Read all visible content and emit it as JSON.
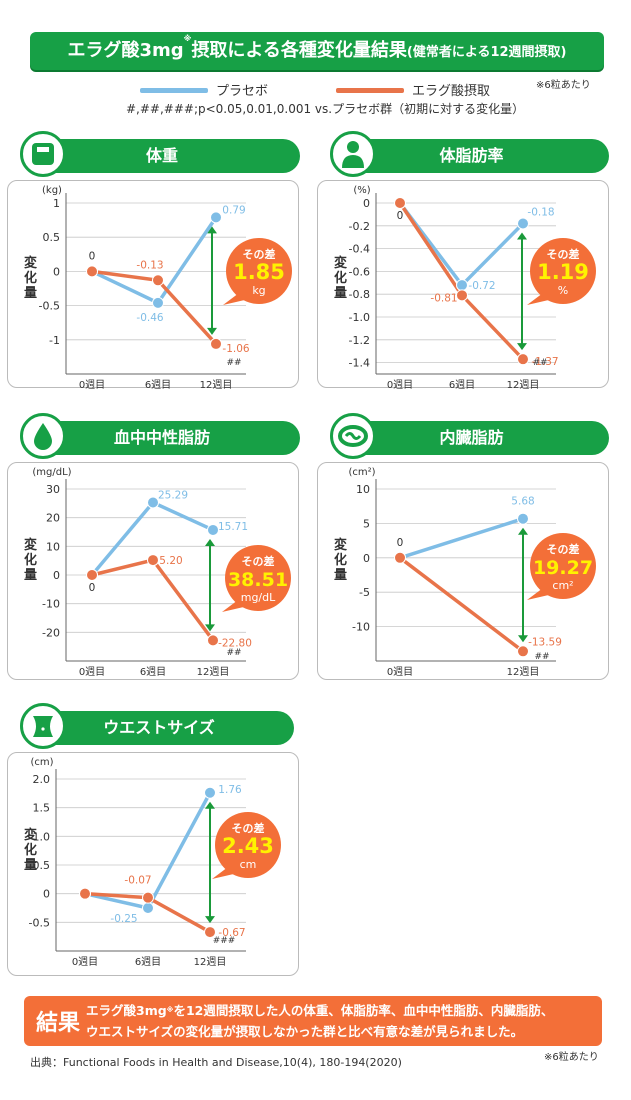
{
  "header": {
    "title_main": "エラグ酸3mg",
    "title_sup": "※",
    "title_rest": "摂取による各種変化量結果",
    "title_paren": "(健常者による12週間摂取)",
    "per_pill": "※6粒あたり",
    "significance": "#,##,###;p<0.05,0.01,0.001 vs.プラセボ群（初期に対する変化量）"
  },
  "legend": {
    "placebo": "プラセボ",
    "ellagic": "エラグ酸摂取"
  },
  "colors": {
    "green": "#17a046",
    "placebo": "#7fbde6",
    "ellagic": "#e8744a",
    "badge": "#f36f38",
    "badge_value": "#fff200",
    "arrow": "#1a9a3a"
  },
  "y_axis_label": "変化量",
  "chart_data": [
    {
      "type": "line",
      "title": "体重",
      "icon": "scale-icon",
      "unit": "(kg)",
      "x": [
        "0週目",
        "6週目",
        "12週目"
      ],
      "ylim": [
        -1.5,
        1
      ],
      "yticks": [
        "1",
        "0.5",
        "0",
        "-0.5",
        "-1"
      ],
      "series": [
        {
          "name": "プラセボ",
          "values": [
            0,
            -0.46,
            0.79
          ],
          "labels": [
            "0",
            "-0.46",
            "0.79"
          ]
        },
        {
          "name": "エラグ酸摂取",
          "values": [
            0,
            -0.13,
            -1.06
          ],
          "labels": [
            "",
            "-0.13",
            "-1.06"
          ]
        }
      ],
      "significance": "##",
      "difference": {
        "label": "その差",
        "value": "1.85",
        "unit": "kg"
      }
    },
    {
      "type": "line",
      "title": "体脂肪率",
      "icon": "body-icon",
      "unit": "(%)",
      "x": [
        "0週目",
        "6週目",
        "12週目"
      ],
      "ylim": [
        -1.5,
        0
      ],
      "yticks": [
        "0",
        "-0.2",
        "-0.4",
        "-0.6",
        "-0.8",
        "-1.0",
        "-1.2",
        "-1.4"
      ],
      "series": [
        {
          "name": "プラセボ",
          "values": [
            0,
            -0.72,
            -0.18
          ],
          "labels": [
            "0",
            "-0.72",
            "-0.18"
          ]
        },
        {
          "name": "エラグ酸摂取",
          "values": [
            0,
            -0.81,
            -1.37
          ],
          "labels": [
            "",
            "-0.81",
            "-1.37"
          ]
        }
      ],
      "significance": "##",
      "difference": {
        "label": "その差",
        "value": "1.19",
        "unit": "%"
      }
    },
    {
      "type": "line",
      "title": "血中中性脂肪",
      "icon": "drop-icon",
      "unit": "(mg/dL)",
      "x": [
        "0週目",
        "6週目",
        "12週目"
      ],
      "ylim": [
        -30,
        30
      ],
      "yticks": [
        "30",
        "20",
        "10",
        "0",
        "-10",
        "-20"
      ],
      "series": [
        {
          "name": "プラセボ",
          "values": [
            0,
            25.29,
            15.71
          ],
          "labels": [
            "0",
            "25.29",
            "15.71"
          ]
        },
        {
          "name": "エラグ酸摂取",
          "values": [
            0,
            5.2,
            -22.8
          ],
          "labels": [
            "",
            "5.20",
            "-22.80"
          ]
        }
      ],
      "significance": "##",
      "difference": {
        "label": "その差",
        "value": "38.51",
        "unit": "mg/dL"
      }
    },
    {
      "type": "line",
      "title": "内臓脂肪",
      "icon": "viscera-icon",
      "unit": "(cm²)",
      "x": [
        "0週目",
        "12週目"
      ],
      "ylim": [
        -15,
        10
      ],
      "yticks": [
        "10",
        "5",
        "0",
        "-5",
        "-10"
      ],
      "series": [
        {
          "name": "プラセボ",
          "values": [
            0,
            5.68
          ],
          "labels": [
            "0",
            "5.68"
          ]
        },
        {
          "name": "エラグ酸摂取",
          "values": [
            0,
            -13.59
          ],
          "labels": [
            "",
            "-13.59"
          ]
        }
      ],
      "significance": "##",
      "difference": {
        "label": "その差",
        "value": "19.27",
        "unit": "cm²"
      }
    },
    {
      "type": "line",
      "title": "ウエストサイズ",
      "icon": "waist-icon",
      "unit": "(cm)",
      "x": [
        "0週目",
        "6週目",
        "12週目"
      ],
      "ylim": [
        -1,
        2
      ],
      "yticks": [
        "2.0",
        "1.5",
        "1.0",
        "0.5",
        "0",
        "-0.5"
      ],
      "series": [
        {
          "name": "プラセボ",
          "values": [
            0,
            -0.25,
            1.76
          ],
          "labels": [
            "",
            "-0.25",
            "1.76"
          ]
        },
        {
          "name": "エラグ酸摂取",
          "values": [
            0,
            -0.07,
            -0.67
          ],
          "labels": [
            "",
            "-0.07",
            "-0.67"
          ]
        }
      ],
      "significance": "###",
      "difference": {
        "label": "その差",
        "value": "2.43",
        "unit": "cm"
      }
    }
  ],
  "result": {
    "tag": "結果",
    "line1_a": "エラグ酸3mg",
    "line1_sup": "※",
    "line1_b": "を12週間摂取した人の体重、体脂肪率、血中中性脂肪、内臓脂肪、",
    "line2": "ウエストサイズの変化量が摂取しなかった群と比べ有意な差が見られました。"
  },
  "source": "出典：Functional Foods in Health and Disease,10(4), 180-194(2020)",
  "footnote": "※6粒あたり"
}
